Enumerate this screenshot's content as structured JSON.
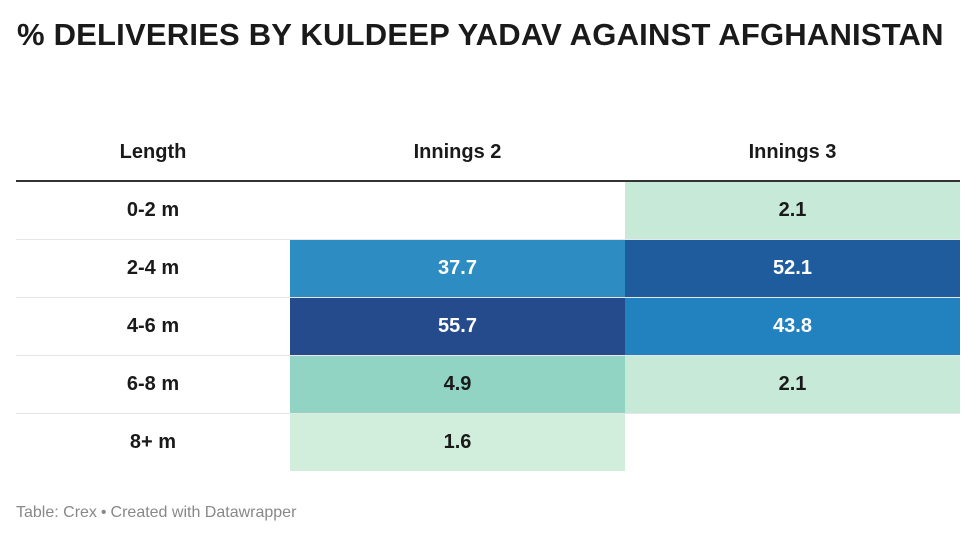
{
  "title": "% DELIVERIES BY KULDEEP YADAV AGAINST AFGHANISTAN",
  "chart_data": {
    "type": "heatmap",
    "title": "% DELIVERIES BY KULDEEP YADAV AGAINST AFGHANISTAN",
    "columns": [
      "Length",
      "Innings 2",
      "Innings 3"
    ],
    "rows": [
      {
        "label": "0-2 m",
        "values": [
          "",
          "2.1"
        ]
      },
      {
        "label": "2-4 m",
        "values": [
          "37.7",
          "52.1"
        ]
      },
      {
        "label": "4-6 m",
        "values": [
          "55.7",
          "43.8"
        ]
      },
      {
        "label": "6-8 m",
        "values": [
          "4.9",
          "2.1"
        ]
      },
      {
        "label": "8+ m",
        "values": [
          "1.6",
          ""
        ]
      }
    ],
    "color_scale": {
      "stops": [
        {
          "value": 0,
          "color": "#f0f9e8"
        },
        {
          "value": 5,
          "color": "#8fd3c2"
        },
        {
          "value": 30,
          "color": "#3a9bc8"
        },
        {
          "value": 45,
          "color": "#2080bf"
        },
        {
          "value": 52,
          "color": "#1f5c9e"
        },
        {
          "value": 56,
          "color": "#264a8c"
        }
      ],
      "light_text": "#ffffff",
      "dark_text": "#1a1a1a"
    }
  },
  "footer": {
    "source": "Table: Crex",
    "separator": "•",
    "credit": "Created with Datawrapper"
  }
}
